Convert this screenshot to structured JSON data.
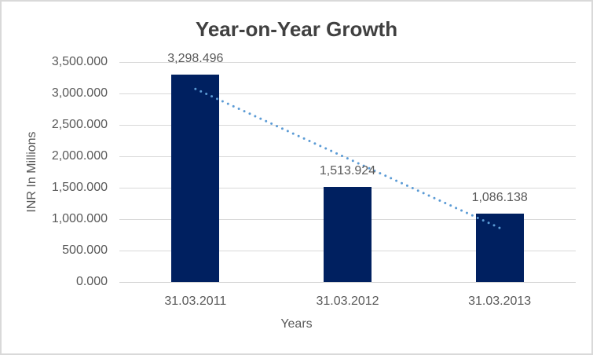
{
  "chart_data": {
    "type": "bar",
    "title": "Year-on-Year Growth",
    "categories": [
      "31.03.2011",
      "31.03.2012",
      "31.03.2013"
    ],
    "values": [
      3298.496,
      1513.924,
      1086.138
    ],
    "data_labels": [
      "3,298.496",
      "1,513.924",
      "1,086.138"
    ],
    "xlabel": "Years",
    "ylabel": "INR In Millions",
    "ylim": [
      0,
      3500
    ],
    "y_tick_values": [
      0,
      500,
      1000,
      1500,
      2000,
      2500,
      3000,
      3500
    ],
    "y_tick_labels": [
      "0.000",
      "500.000",
      "1,000.000",
      "1,500.000",
      "2,000.000",
      "2,500.000",
      "3,000.000",
      "3,500.000"
    ],
    "grid": true,
    "legend_position": "none",
    "trendline": {
      "type": "linear",
      "style": "dotted",
      "color": "#5B9BD5"
    },
    "colors": {
      "bar": "#002060",
      "title_text": "#404040",
      "axis_text": "#595959",
      "gridline": "#d9d9d9",
      "axis_line": "#d1d1d1",
      "frame_border": "#d9d9d9",
      "background": "#ffffff"
    }
  }
}
